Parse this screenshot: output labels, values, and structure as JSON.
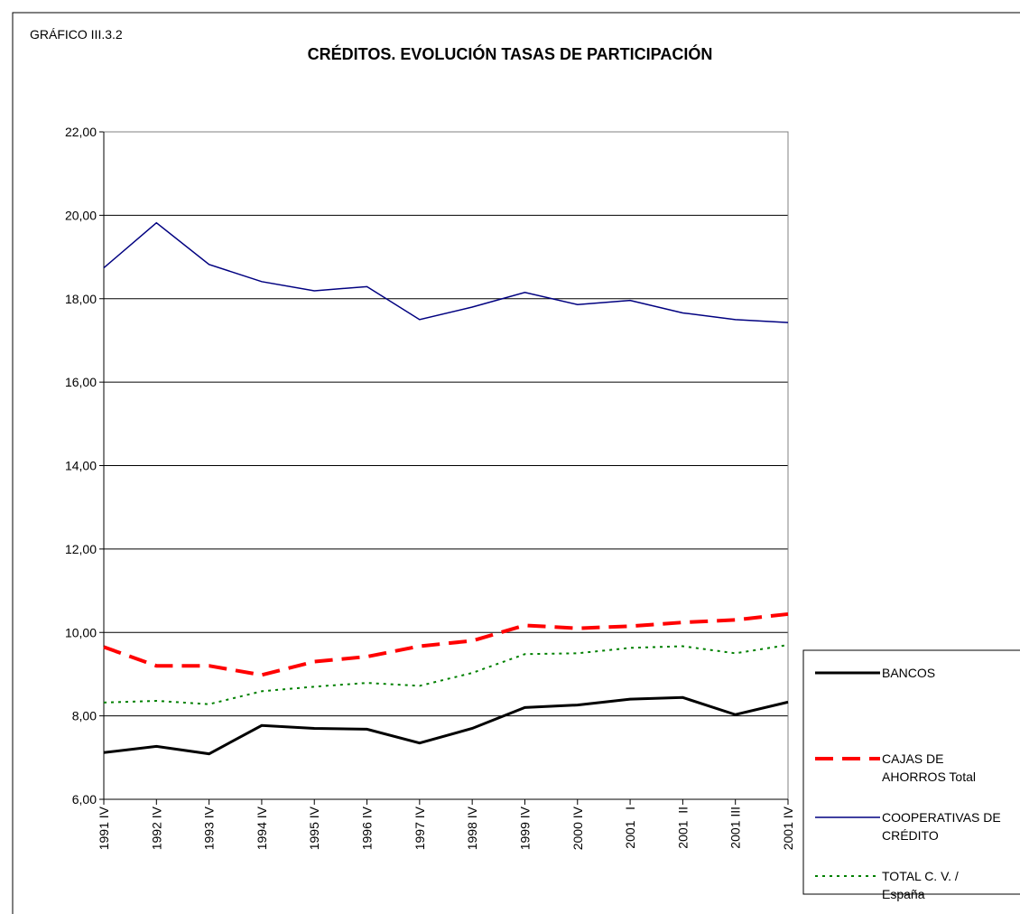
{
  "chart_data": {
    "type": "line",
    "figure_label": "GRÁFICO III.3.2",
    "title": "CRÉDITOS. EVOLUCIÓN TASAS DE PARTICIPACIÓN",
    "categories": [
      "1991 IV",
      "1992 IV",
      "1993 IV",
      "1994 IV",
      "1995 IV",
      "1996 IV",
      "1997 IV",
      "1998 IV",
      "1999 IV",
      "2000 IV",
      "2001   I",
      "2001  II",
      "2001 III",
      "2001 IV"
    ],
    "ylim": [
      6,
      22
    ],
    "yticks": [
      {
        "value": 6,
        "label": "6,00"
      },
      {
        "value": 8,
        "label": "8,00"
      },
      {
        "value": 10,
        "label": "10,00"
      },
      {
        "value": 12,
        "label": "12,00"
      },
      {
        "value": 14,
        "label": "14,00"
      },
      {
        "value": 16,
        "label": "16,00"
      },
      {
        "value": 18,
        "label": "18,00"
      },
      {
        "value": 20,
        "label": "20,00"
      },
      {
        "value": 22,
        "label": "22,00"
      }
    ],
    "grid": true,
    "legend": "right",
    "series": [
      {
        "name": "BANCOS",
        "color": "#000000",
        "line_style": "solid",
        "values": [
          7.12,
          7.27,
          7.09,
          7.77,
          7.7,
          7.68,
          7.35,
          7.7,
          8.2,
          8.26,
          8.4,
          8.44,
          8.03,
          8.33
        ]
      },
      {
        "name": "CAJAS DE AHORROS Total",
        "color": "#ff0000",
        "line_style": "dashed",
        "values": [
          9.65,
          9.2,
          9.2,
          8.98,
          9.3,
          9.42,
          9.67,
          9.8,
          10.17,
          10.1,
          10.15,
          10.24,
          10.3,
          10.44
        ]
      },
      {
        "name": "COOPERATIVAS DE CRÉDITO",
        "color": "#000080",
        "line_style": "thin",
        "values": [
          18.74,
          19.82,
          18.82,
          18.41,
          18.19,
          18.29,
          17.5,
          17.8,
          18.15,
          17.86,
          17.96,
          17.66,
          17.5,
          17.43
        ]
      },
      {
        "name": "TOTAL  C. V. / España",
        "color": "#008000",
        "line_style": "dotted",
        "values": [
          8.32,
          8.36,
          8.28,
          8.59,
          8.7,
          8.79,
          8.72,
          9.03,
          9.48,
          9.5,
          9.63,
          9.67,
          9.5,
          9.7
        ]
      }
    ]
  }
}
